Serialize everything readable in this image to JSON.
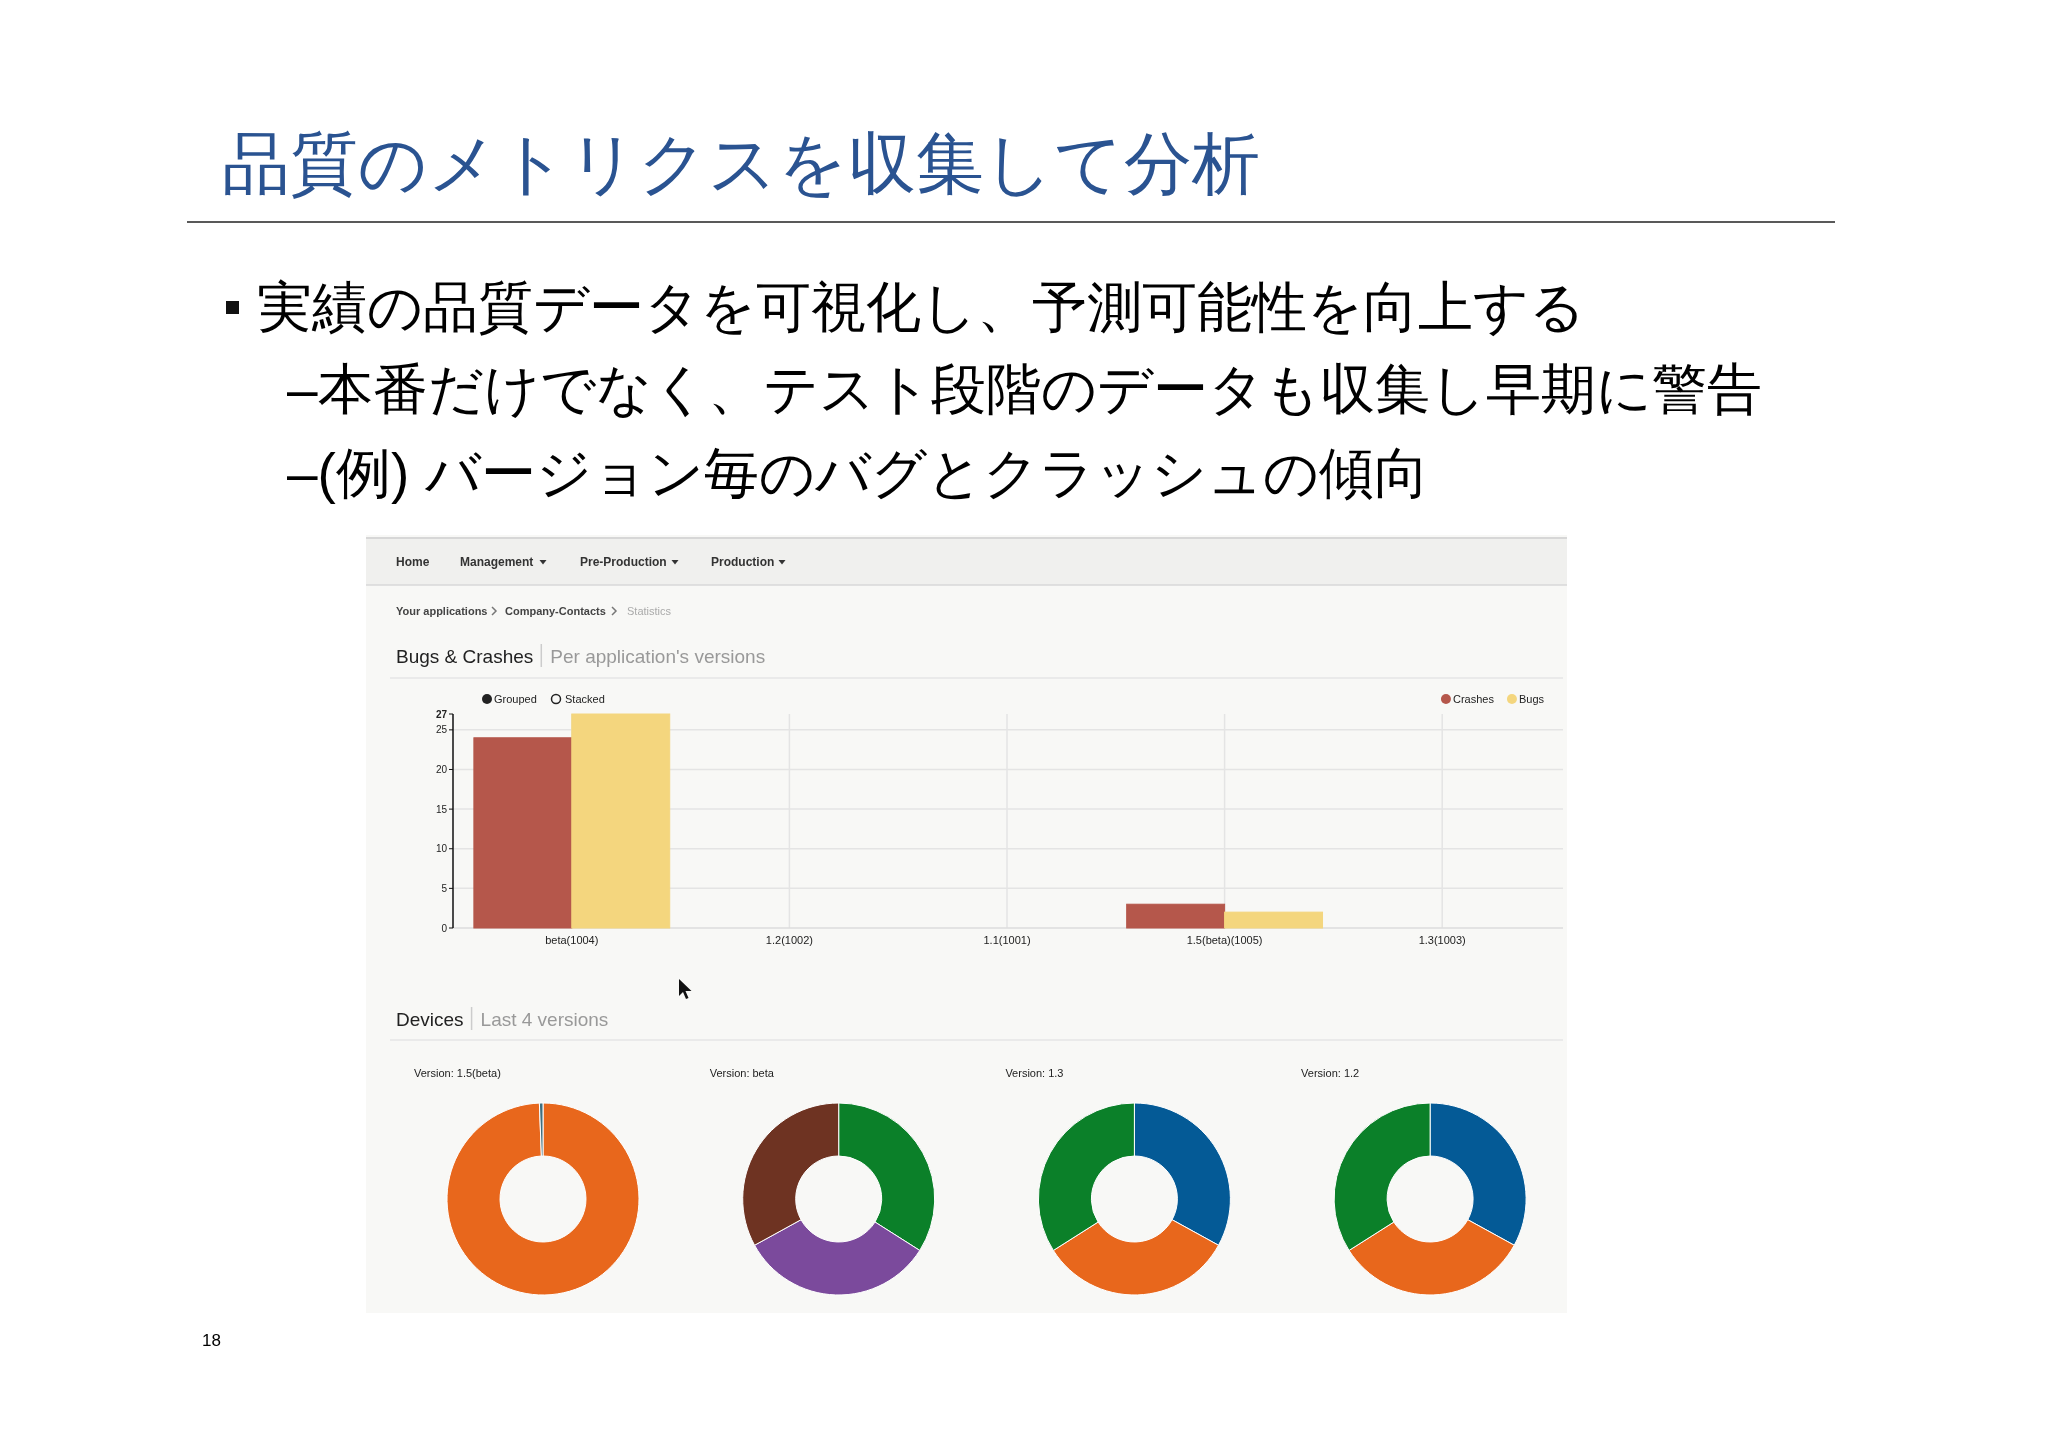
{
  "chart_data": [
    {
      "type": "bar",
      "title": "Bugs & Crashes",
      "subtitle": "Per application's versions",
      "categories": [
        "beta(1004)",
        "1.2(1002)",
        "1.1(1001)",
        "1.5(beta)(1005)",
        "1.3(1003)"
      ],
      "series": [
        {
          "name": "Crashes",
          "color": "#b5574b",
          "values": [
            24,
            0,
            0,
            3,
            0
          ]
        },
        {
          "name": "Bugs",
          "color": "#f4d67e",
          "values": [
            27,
            0,
            0,
            2,
            0
          ]
        }
      ],
      "ylim": [
        0,
        27
      ],
      "yticks": [
        0,
        5,
        10,
        15,
        20,
        25,
        27
      ],
      "grid": true,
      "legend": "top right",
      "annotations": [
        "品質のメトリクスを収集して分析",
        "実績の品質データを可視化し、予測可能性を向上する",
        "–本番だけでなく、テスト段階のデータも収集し早期に警告",
        "–(例) バージョン毎のバグとクラッシュの傾向",
        "Home",
        "Management",
        "Pre-Production",
        "Production",
        "Your applications",
        "Company-Contacts",
        "Statistics",
        "Grouped",
        "Stacked",
        "18"
      ]
    },
    {
      "type": "donut",
      "title": "Version: 1.5(beta)",
      "categories": [
        null,
        null
      ],
      "values": [
        99.4,
        0.6
      ],
      "colors": [
        "#e8671c",
        "#3f6f7f"
      ],
      "annotations": [
        "Devices",
        "Last 4 versions"
      ]
    },
    {
      "type": "donut",
      "title": "Version: beta",
      "categories": [
        null,
        null,
        null
      ],
      "values": [
        34,
        33,
        33
      ],
      "colors": [
        "#0b8029",
        "#7b4a9c",
        "#6e3322"
      ]
    },
    {
      "type": "donut",
      "title": "Version: 1.3",
      "categories": [
        null,
        null,
        null
      ],
      "values": [
        33,
        33,
        34
      ],
      "colors": [
        "#045a96",
        "#e8671c",
        "#0b8029"
      ]
    },
    {
      "type": "donut",
      "title": "Version: 1.2",
      "categories": [
        null,
        null,
        null
      ],
      "values": [
        33,
        33,
        34
      ],
      "colors": [
        "#045a96",
        "#e8671c",
        "#0b8029"
      ]
    }
  ]
}
